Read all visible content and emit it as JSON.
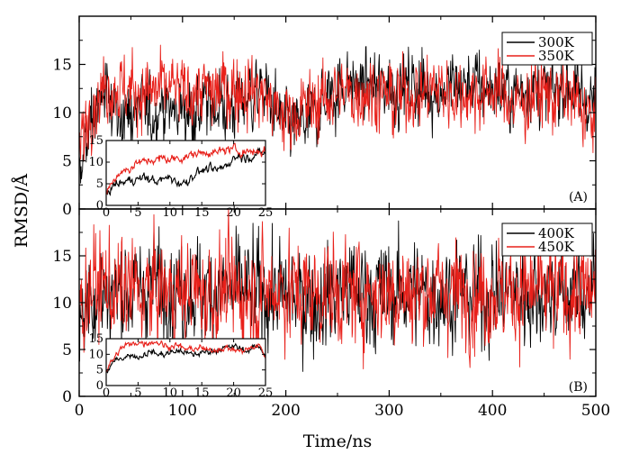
{
  "figure": {
    "xlabel": "Time/ns",
    "ylabel": "RMSD/Å"
  },
  "colors": {
    "series_a": "#000000",
    "series_b": "#e8201a"
  },
  "chart_data": [
    {
      "panel": "(A)",
      "type": "line",
      "xlim": [
        0,
        500
      ],
      "ylim": [
        0,
        20
      ],
      "x_ticks": [
        0,
        100,
        200,
        300,
        400,
        500
      ],
      "y_ticks": [
        0,
        5,
        10,
        15
      ],
      "legend": "top-right",
      "grid": false,
      "series": [
        {
          "name": "300K",
          "color": "#000000",
          "x": [
            0,
            10,
            20,
            30,
            40,
            50,
            60,
            70,
            80,
            90,
            100,
            110,
            120,
            130,
            140,
            150,
            160,
            170,
            180,
            190,
            200,
            210,
            220,
            230,
            240,
            250,
            260,
            270,
            280,
            290,
            300,
            310,
            320,
            330,
            340,
            350,
            360,
            370,
            380,
            390,
            400,
            410,
            420,
            430,
            440,
            450,
            460,
            470,
            480,
            490,
            500
          ],
          "values": [
            4,
            9,
            11,
            11.5,
            10,
            9.5,
            10.5,
            9.5,
            11,
            10,
            10.5,
            10,
            10.5,
            11,
            10.5,
            11,
            11.5,
            12,
            12,
            10,
            8.5,
            8.5,
            9,
            10,
            11.5,
            12.5,
            13,
            12.5,
            13,
            12.5,
            13,
            12.5,
            13,
            12.5,
            12.5,
            12,
            13,
            12.5,
            13,
            12.5,
            12.5,
            12,
            12,
            12.5,
            12.5,
            12,
            12,
            13,
            12,
            11.5,
            11
          ]
        },
        {
          "name": "350K",
          "color": "#e8201a",
          "x": [
            0,
            10,
            20,
            30,
            40,
            50,
            60,
            70,
            80,
            90,
            100,
            110,
            120,
            130,
            140,
            150,
            160,
            170,
            180,
            190,
            200,
            210,
            220,
            230,
            240,
            250,
            260,
            270,
            280,
            290,
            300,
            310,
            320,
            330,
            340,
            350,
            360,
            370,
            380,
            390,
            400,
            410,
            420,
            430,
            440,
            450,
            460,
            470,
            480,
            490,
            500
          ],
          "values": [
            6,
            10.5,
            12,
            13,
            12.5,
            12.5,
            12,
            12,
            12.5,
            12.5,
            12,
            12,
            12.5,
            12,
            12.5,
            12.5,
            12.5,
            12.5,
            12,
            10,
            9.5,
            10,
            10.5,
            11,
            11.5,
            12,
            12,
            12,
            12.5,
            12,
            11.5,
            11.5,
            12,
            12,
            12.5,
            12.5,
            12,
            12,
            12,
            12,
            12.5,
            12,
            11,
            11,
            12,
            12,
            11.5,
            12,
            11,
            10,
            9
          ]
        }
      ],
      "inset": {
        "xlim": [
          0,
          25
        ],
        "ylim": [
          0,
          15
        ],
        "x_ticks": [
          0,
          5,
          10,
          15,
          20,
          25
        ],
        "y_ticks": [
          0,
          5,
          10,
          15
        ],
        "series": [
          {
            "name": "300K",
            "color": "#000000",
            "x": [
              0,
              1,
              2,
              3,
              4,
              5,
              6,
              7,
              8,
              9,
              10,
              11,
              12,
              13,
              14,
              15,
              16,
              17,
              18,
              19,
              20,
              21,
              22,
              23,
              24,
              25
            ],
            "values": [
              2.5,
              4.5,
              5,
              5.5,
              6,
              6,
              6.5,
              6,
              5.5,
              6,
              6.5,
              5.5,
              5,
              6,
              7.5,
              8,
              8.5,
              8,
              8.5,
              9.5,
              11,
              11.5,
              11,
              11.5,
              12,
              12
            ]
          },
          {
            "name": "350K",
            "color": "#e8201a",
            "x": [
              0,
              1,
              2,
              3,
              4,
              5,
              6,
              7,
              8,
              9,
              10,
              11,
              12,
              13,
              14,
              15,
              16,
              17,
              18,
              19,
              20,
              21,
              22,
              23,
              24,
              25
            ],
            "values": [
              3,
              5.5,
              7.5,
              8,
              9,
              10,
              10,
              10.5,
              10.5,
              11,
              10.5,
              11,
              11,
              11.5,
              12,
              12,
              12.5,
              12,
              12.5,
              13,
              13,
              12.5,
              12.5,
              12.5,
              12.5,
              12.5
            ]
          }
        ]
      }
    },
    {
      "panel": "(B)",
      "type": "line",
      "xlim": [
        0,
        500
      ],
      "ylim": [
        0,
        20
      ],
      "x_ticks": [
        0,
        100,
        200,
        300,
        400,
        500
      ],
      "y_ticks": [
        0,
        5,
        10,
        15
      ],
      "legend": "top-right",
      "grid": false,
      "series": [
        {
          "name": "400K",
          "color": "#000000",
          "x": [
            0,
            10,
            20,
            30,
            40,
            50,
            60,
            70,
            80,
            90,
            100,
            110,
            120,
            130,
            140,
            150,
            160,
            170,
            180,
            190,
            200,
            210,
            220,
            230,
            240,
            250,
            260,
            270,
            280,
            290,
            300,
            310,
            320,
            330,
            340,
            350,
            360,
            370,
            380,
            390,
            400,
            410,
            420,
            430,
            440,
            450,
            460,
            470,
            480,
            490,
            500
          ],
          "values": [
            8,
            11,
            10.5,
            11,
            11.5,
            11,
            11.5,
            12,
            12,
            11.5,
            11,
            11.5,
            11,
            11.5,
            11,
            11,
            11.5,
            11,
            11,
            11,
            10.5,
            10.5,
            10.5,
            10,
            10.5,
            11,
            11.5,
            11,
            11,
            11,
            11,
            11,
            11.5,
            11,
            11,
            11,
            11,
            11,
            11,
            11,
            11,
            11,
            11,
            11,
            11,
            11,
            11,
            11,
            11,
            11,
            11
          ]
        },
        {
          "name": "450K",
          "color": "#e8201a",
          "x": [
            0,
            10,
            20,
            30,
            40,
            50,
            60,
            70,
            80,
            90,
            100,
            110,
            120,
            130,
            140,
            150,
            160,
            170,
            180,
            190,
            200,
            210,
            220,
            230,
            240,
            250,
            260,
            270,
            280,
            290,
            300,
            310,
            320,
            330,
            340,
            350,
            360,
            370,
            380,
            390,
            400,
            410,
            420,
            430,
            440,
            450,
            460,
            470,
            480,
            490,
            500
          ],
          "values": [
            9,
            11.5,
            12,
            11.5,
            11,
            11.5,
            11,
            11,
            11.5,
            11,
            11,
            11.5,
            11,
            11,
            11.5,
            11,
            11,
            11,
            11,
            11.5,
            11.5,
            11,
            11,
            11,
            11.5,
            11,
            11,
            11,
            11.5,
            11,
            11,
            11.5,
            11,
            11,
            11.5,
            11,
            11.5,
            11,
            11,
            11,
            11.5,
            11,
            11,
            11,
            11,
            11,
            11,
            11,
            11,
            11,
            11
          ]
        }
      ],
      "inset": {
        "xlim": [
          0,
          25
        ],
        "ylim": [
          0,
          15
        ],
        "x_ticks": [
          0,
          5,
          10,
          15,
          20,
          25
        ],
        "y_ticks": [
          0,
          5,
          10,
          15
        ],
        "series": [
          {
            "name": "400K",
            "color": "#000000",
            "x": [
              0,
              1,
              2,
              3,
              4,
              5,
              6,
              7,
              8,
              9,
              10,
              11,
              12,
              13,
              14,
              15,
              16,
              17,
              18,
              19,
              20,
              21,
              22,
              23,
              24,
              25
            ],
            "values": [
              4,
              7,
              9,
              9,
              10,
              9,
              10,
              11,
              10,
              10,
              10.5,
              11,
              11,
              10,
              10,
              10.5,
              11,
              11,
              12,
              12,
              12.5,
              12,
              11,
              12,
              12.5,
              10
            ]
          },
          {
            "name": "450K",
            "color": "#e8201a",
            "x": [
              0,
              1,
              2,
              3,
              4,
              5,
              6,
              7,
              8,
              9,
              10,
              11,
              12,
              13,
              14,
              15,
              16,
              17,
              18,
              19,
              20,
              21,
              22,
              23,
              24,
              25
            ],
            "values": [
              5,
              8,
              11,
              13,
              13,
              14,
              13.5,
              14,
              14,
              13,
              12.5,
              13,
              12,
              11.5,
              12,
              12,
              11,
              11.5,
              12,
              12,
              11.5,
              11,
              11.5,
              12,
              13,
              9
            ]
          }
        ]
      }
    }
  ]
}
